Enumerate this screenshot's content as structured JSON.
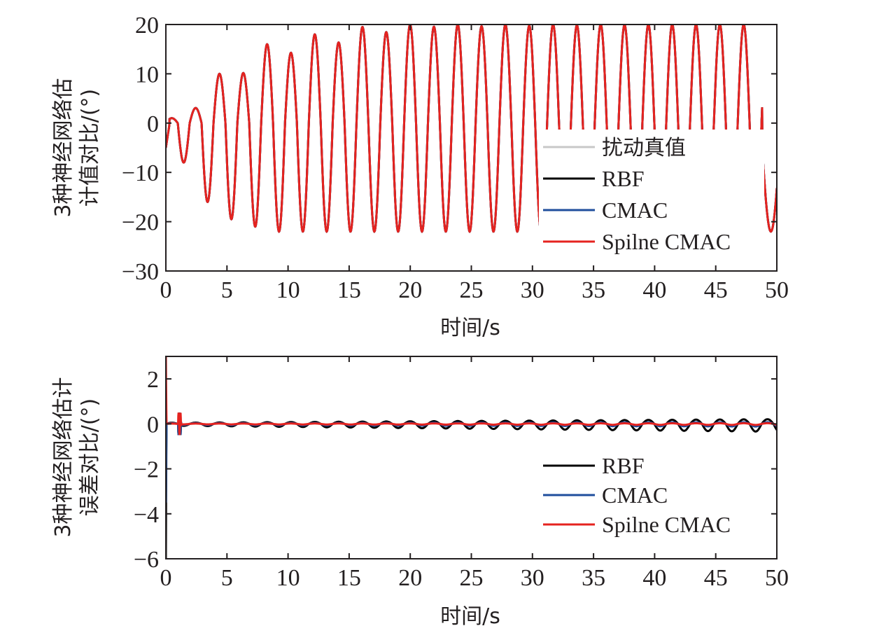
{
  "chart_data": [
    {
      "type": "line",
      "xlabel": "时间/s",
      "ylabel": [
        "3种神经网络估",
        "计值对比/(°)"
      ],
      "xlim": [
        0,
        50
      ],
      "ylim": [
        -30,
        20
      ],
      "xticks": [
        0,
        5,
        10,
        15,
        20,
        25,
        30,
        35,
        40,
        45,
        50
      ],
      "xtick_labels": [
        "0",
        "5",
        "10",
        "15",
        "20",
        "25",
        "30",
        "35",
        "40",
        "45",
        "50"
      ],
      "yticks": [
        20,
        10,
        0,
        -10,
        -20,
        -30
      ],
      "ytick_labels": [
        "20",
        "10",
        "0",
        "−10",
        "−20",
        "−30"
      ],
      "grid": false,
      "legend_position": "right",
      "series": [
        {
          "name": "扰动真值",
          "color": "#c8c8c8",
          "model": {
            "kind": "oscillation",
            "period": 1.95,
            "peaks_max": [
              1.0,
              4,
              10,
              11,
              16,
              15,
              18,
              17,
              19.5,
              19,
              20,
              20
            ],
            "troughs_min": [
              -8,
              -16,
              -19.5,
              -21,
              -22,
              -22,
              -22,
              -22,
              -22
            ],
            "ramp_end": 12
          }
        },
        {
          "name": "RBF",
          "color": "#000000",
          "model": {
            "kind": "oscillation",
            "period": 1.95,
            "peaks_max": [
              1.0,
              4,
              10,
              11,
              16,
              15,
              18,
              17,
              19.5,
              19,
              20,
              20
            ],
            "troughs_min": [
              -8,
              -16,
              -19.5,
              -21,
              -22,
              -22,
              -22,
              -22,
              -22
            ],
            "ramp_end": 12
          }
        },
        {
          "name": "CMAC",
          "color": "#1f4e9c",
          "model": {
            "kind": "oscillation",
            "period": 1.95,
            "peaks_max": [
              1.0,
              4,
              10,
              11,
              16,
              15,
              18,
              17,
              19.5,
              19,
              20,
              20
            ],
            "troughs_min": [
              -8,
              -16,
              -19.5,
              -21,
              -22,
              -22,
              -22,
              -22,
              -22
            ],
            "ramp_end": 12
          }
        },
        {
          "name": "Spilne CMAC",
          "color": "#e5231f",
          "model": {
            "kind": "oscillation",
            "period": 1.95,
            "peaks_max": [
              1.0,
              4,
              10,
              11,
              16,
              15,
              18,
              17,
              19.5,
              19,
              20,
              20
            ],
            "troughs_min": [
              -8,
              -16,
              -19.5,
              -21,
              -22,
              -22,
              -22,
              -22,
              -22
            ],
            "ramp_end": 12
          }
        }
      ]
    },
    {
      "type": "line",
      "xlabel": "时间/s",
      "ylabel": [
        "3种神经网络估计",
        "误差对比/(°)"
      ],
      "xlim": [
        0,
        50
      ],
      "ylim": [
        -6,
        3
      ],
      "xticks": [
        0,
        5,
        10,
        15,
        20,
        25,
        30,
        35,
        40,
        45,
        50
      ],
      "xtick_labels": [
        "0",
        "5",
        "10",
        "15",
        "20",
        "25",
        "30",
        "35",
        "40",
        "45",
        "50"
      ],
      "yticks": [
        2,
        0,
        -2,
        -4,
        -6
      ],
      "ytick_labels": [
        "2",
        "0",
        "−2",
        "−4",
        "−6"
      ],
      "grid": false,
      "legend_position": "lower-right",
      "series": [
        {
          "name": "RBF",
          "color": "#000000",
          "model": {
            "kind": "error",
            "initial": -6,
            "amp_start": 0.08,
            "amp_end": 0.35,
            "period": 1.95
          }
        },
        {
          "name": "CMAC",
          "color": "#1f4e9c",
          "model": {
            "kind": "error",
            "initial": -3.5,
            "amp_start": 0.05,
            "amp_end": 0.12,
            "period": 1.95
          }
        },
        {
          "name": "Spilne CMAC",
          "color": "#e5231f",
          "model": {
            "kind": "error",
            "initial": 3.3,
            "amp_start": 0.02,
            "amp_end": 0.05,
            "period": 1.95
          }
        }
      ]
    }
  ]
}
